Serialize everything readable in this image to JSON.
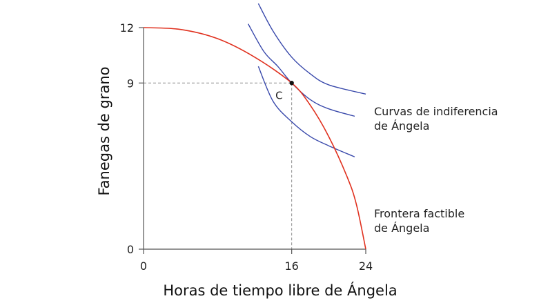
{
  "chart_data": {
    "type": "line",
    "title": "",
    "xlabel": "Horas de tiempo libre de Ángela",
    "ylabel": "Fanegas de grano",
    "xlim": [
      0,
      24
    ],
    "ylim": [
      0,
      12
    ],
    "x_ticks": [
      "0",
      "16",
      "24"
    ],
    "y_ticks": [
      "0",
      "9",
      "12"
    ],
    "grid": false,
    "frontier": {
      "name": "Frontera factible de Ángela",
      "label_lines": [
        "Frontera factible",
        "de Ángela"
      ],
      "color": "#e0301e",
      "points": [
        [
          0,
          12
        ],
        [
          4,
          11.9
        ],
        [
          8,
          11.4
        ],
        [
          12,
          10.4
        ],
        [
          16,
          9
        ],
        [
          18,
          7.8
        ],
        [
          20,
          6.1
        ],
        [
          22,
          3.9
        ],
        [
          23,
          2.4
        ],
        [
          24,
          0
        ]
      ]
    },
    "indifference_curves": {
      "label_lines": [
        "Curvas de indiferencia",
        "de Ángela"
      ],
      "color": "#3949ab",
      "curves": [
        {
          "points": [
            [
              12.4,
              9.9
            ],
            [
              14,
              8.0
            ],
            [
              16,
              6.9
            ],
            [
              18,
              6.1
            ],
            [
              20,
              5.6
            ],
            [
              22.8,
              5.0
            ]
          ]
        },
        {
          "points": [
            [
              11.3,
              12.2
            ],
            [
              13,
              10.7
            ],
            [
              14.5,
              9.9
            ],
            [
              16,
              9.0
            ],
            [
              18,
              8.1
            ],
            [
              20,
              7.6
            ],
            [
              22.8,
              7.2
            ]
          ]
        },
        {
          "points": [
            [
              12.4,
              13.3
            ],
            [
              14,
              11.8
            ],
            [
              16,
              10.4
            ],
            [
              18,
              9.5
            ],
            [
              20,
              8.9
            ],
            [
              24,
              8.4
            ]
          ]
        }
      ]
    },
    "point": {
      "label": "C",
      "x": 16,
      "y": 9
    }
  }
}
